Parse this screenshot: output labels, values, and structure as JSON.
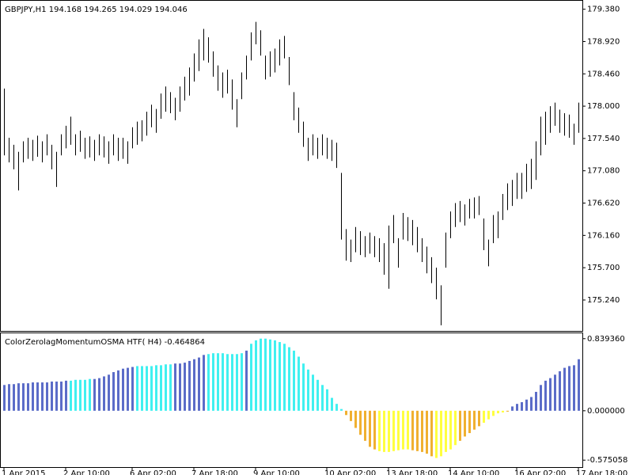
{
  "chart_data": [
    {
      "type": "range-bar",
      "title": "GBPJPY,H1  194.168 194.265 194.029 194.046",
      "color": "#000000",
      "high": [
        178.25,
        177.55,
        177.45,
        177.35,
        177.5,
        177.55,
        177.52,
        177.58,
        177.5,
        177.6,
        177.45,
        177.35,
        177.6,
        177.72,
        177.85,
        177.6,
        177.65,
        177.55,
        177.57,
        177.52,
        177.6,
        177.57,
        177.5,
        177.6,
        177.55,
        177.55,
        177.5,
        177.7,
        177.78,
        177.8,
        177.92,
        178.02,
        177.96,
        178.18,
        178.28,
        178.2,
        178.12,
        178.28,
        178.42,
        178.55,
        178.75,
        178.95,
        179.1,
        178.98,
        178.78,
        178.58,
        178.48,
        178.52,
        178.38,
        178.1,
        178.48,
        178.72,
        179.05,
        179.2,
        179.08,
        178.72,
        178.78,
        178.82,
        178.95,
        179.0,
        178.7,
        178.2,
        177.98,
        177.78,
        177.55,
        177.6,
        177.55,
        177.6,
        177.55,
        177.52,
        177.48,
        177.05,
        176.25,
        176.1,
        176.28,
        176.22,
        176.15,
        176.2,
        176.15,
        176.12,
        176.05,
        176.3,
        176.45,
        176.12,
        176.48,
        176.42,
        176.38,
        176.28,
        176.12,
        176.0,
        175.85,
        175.7,
        175.45,
        176.2,
        176.5,
        176.62,
        176.65,
        176.6,
        176.68,
        176.7,
        176.72,
        176.4,
        176.1,
        176.45,
        176.5,
        176.75,
        176.9,
        176.95,
        177.05,
        177.05,
        177.18,
        177.25,
        177.5,
        177.85,
        177.92,
        178.0,
        178.05,
        177.95,
        177.9,
        177.88,
        177.75,
        178.05
      ],
      "low": [
        177.3,
        177.2,
        177.1,
        176.8,
        177.2,
        177.25,
        177.22,
        177.28,
        177.2,
        177.3,
        177.1,
        176.85,
        177.3,
        177.4,
        177.45,
        177.3,
        177.35,
        177.25,
        177.27,
        177.22,
        177.3,
        177.27,
        177.18,
        177.3,
        177.22,
        177.25,
        177.18,
        177.4,
        177.45,
        177.5,
        177.58,
        177.7,
        177.62,
        177.82,
        177.92,
        177.9,
        177.8,
        177.92,
        178.08,
        178.15,
        178.35,
        178.5,
        178.65,
        178.62,
        178.42,
        178.22,
        178.12,
        178.18,
        177.95,
        177.7,
        178.1,
        178.38,
        178.65,
        178.88,
        178.72,
        178.38,
        178.42,
        178.48,
        178.58,
        178.68,
        178.3,
        177.8,
        177.62,
        177.42,
        177.22,
        177.3,
        177.25,
        177.3,
        177.25,
        177.22,
        177.12,
        176.1,
        175.8,
        175.78,
        175.92,
        175.88,
        175.85,
        175.9,
        175.85,
        175.78,
        175.6,
        175.4,
        176.05,
        175.7,
        176.1,
        176.08,
        176.02,
        175.92,
        175.78,
        175.62,
        175.48,
        175.25,
        174.88,
        175.7,
        176.12,
        176.28,
        176.35,
        176.3,
        176.4,
        176.4,
        176.45,
        175.95,
        175.72,
        176.05,
        176.12,
        176.38,
        176.52,
        176.58,
        176.68,
        176.68,
        176.78,
        176.82,
        176.95,
        177.3,
        177.45,
        177.62,
        177.72,
        177.62,
        177.58,
        177.55,
        177.45,
        177.62
      ],
      "ylim": [
        174.8,
        179.5
      ],
      "yticks": [
        {
          "value": 179.38,
          "label": "179.380"
        },
        {
          "value": 178.92,
          "label": "178.920"
        },
        {
          "value": 178.46,
          "label": "178.460"
        },
        {
          "value": 178.0,
          "label": "178.000"
        },
        {
          "value": 177.54,
          "label": "177.540"
        },
        {
          "value": 177.08,
          "label": "177.080"
        },
        {
          "value": 176.62,
          "label": "176.620"
        },
        {
          "value": 176.16,
          "label": "176.160"
        },
        {
          "value": 175.7,
          "label": "175.700"
        },
        {
          "value": 175.24,
          "label": "175.240"
        }
      ],
      "grid": false
    },
    {
      "type": "bar",
      "title": "ColorZerolagMomentumOSMA HTF( H4) -0.464864",
      "values": [
        0.3,
        0.31,
        0.31,
        0.32,
        0.32,
        0.32,
        0.33,
        0.33,
        0.33,
        0.33,
        0.34,
        0.34,
        0.34,
        0.35,
        0.35,
        0.36,
        0.36,
        0.36,
        0.37,
        0.37,
        0.38,
        0.4,
        0.42,
        0.45,
        0.47,
        0.49,
        0.5,
        0.51,
        0.52,
        0.52,
        0.52,
        0.52,
        0.53,
        0.53,
        0.54,
        0.54,
        0.55,
        0.55,
        0.56,
        0.58,
        0.6,
        0.62,
        0.65,
        0.66,
        0.67,
        0.67,
        0.67,
        0.66,
        0.66,
        0.66,
        0.67,
        0.7,
        0.78,
        0.82,
        0.84,
        0.84,
        0.83,
        0.82,
        0.8,
        0.78,
        0.74,
        0.7,
        0.63,
        0.55,
        0.48,
        0.42,
        0.36,
        0.3,
        0.25,
        0.15,
        0.08,
        0.02,
        -0.05,
        -0.12,
        -0.2,
        -0.28,
        -0.35,
        -0.42,
        -0.45,
        -0.47,
        -0.48,
        -0.48,
        -0.47,
        -0.46,
        -0.45,
        -0.45,
        -0.46,
        -0.47,
        -0.48,
        -0.5,
        -0.53,
        -0.55,
        -0.53,
        -0.48,
        -0.45,
        -0.4,
        -0.35,
        -0.3,
        -0.26,
        -0.22,
        -0.18,
        -0.14,
        -0.1,
        -0.06,
        -0.03,
        -0.02,
        -0.01,
        0.05,
        0.08,
        0.1,
        0.13,
        0.16,
        0.22,
        0.3,
        0.35,
        0.38,
        0.42,
        0.46,
        0.5,
        0.52,
        0.53,
        0.6
      ],
      "palette": [
        "#5b6cc8",
        "#40f0f0",
        "#f0b030",
        "#ffff40"
      ],
      "color_index": [
        0,
        0,
        0,
        0,
        0,
        0,
        0,
        0,
        0,
        0,
        0,
        0,
        0,
        0,
        1,
        1,
        1,
        1,
        1,
        0,
        0,
        0,
        0,
        0,
        0,
        0,
        0,
        0,
        1,
        1,
        1,
        1,
        1,
        1,
        1,
        1,
        0,
        0,
        0,
        0,
        0,
        0,
        0,
        1,
        1,
        1,
        1,
        1,
        1,
        1,
        1,
        0,
        1,
        1,
        1,
        1,
        1,
        1,
        1,
        1,
        1,
        1,
        1,
        1,
        1,
        1,
        1,
        1,
        1,
        1,
        1,
        1,
        2,
        2,
        2,
        2,
        2,
        2,
        2,
        3,
        3,
        3,
        3,
        3,
        3,
        3,
        2,
        2,
        2,
        2,
        2,
        3,
        3,
        3,
        3,
        3,
        2,
        2,
        2,
        2,
        2,
        3,
        3,
        3,
        3,
        3,
        2,
        0,
        0,
        0,
        0,
        0,
        0,
        0,
        0,
        0,
        0,
        0,
        0,
        0,
        0,
        0
      ],
      "ylim": [
        -0.656,
        0.902
      ],
      "yticks": [
        {
          "value": 0.83936,
          "label": "0.839360"
        },
        {
          "value": 0,
          "label": "0.000000"
        },
        {
          "value": -0.575058,
          "label": "-0.575058"
        }
      ],
      "xticks": [
        {
          "value": 0,
          "label": "1 Apr 2015"
        },
        {
          "value": 13,
          "label": "2 Apr 10:00"
        },
        {
          "value": 27,
          "label": "6 Apr 02:00"
        },
        {
          "value": 40,
          "label": "7 Apr 18:00"
        },
        {
          "value": 53,
          "label": "9 Apr 10:00"
        },
        {
          "value": 68,
          "label": "10 Apr 02:00"
        },
        {
          "value": 81,
          "label": "13 Apr 18:00"
        },
        {
          "value": 94,
          "label": "14 Apr 10:00"
        },
        {
          "value": 108,
          "label": "16 Apr 02:00"
        },
        {
          "value": 121,
          "label": "17 Apr 18:00"
        }
      ]
    }
  ]
}
